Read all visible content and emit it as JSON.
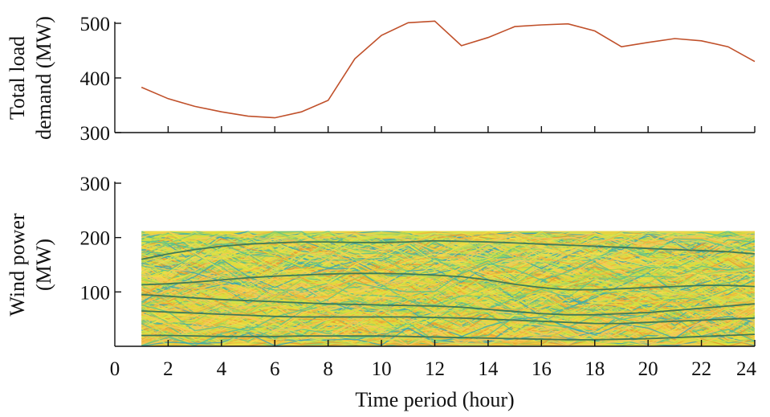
{
  "chart_data": [
    {
      "type": "line",
      "title": "",
      "ylabel_lines": [
        "Total load",
        "demand (MW)"
      ],
      "xlim": [
        0,
        24
      ],
      "ylim": [
        300,
        500
      ],
      "yticks": [
        300,
        400,
        500
      ],
      "xticks": [
        2,
        4,
        6,
        8,
        10,
        12,
        14,
        16,
        18,
        20,
        22,
        24
      ],
      "x": [
        1,
        2,
        3,
        4,
        5,
        6,
        7,
        8,
        9,
        10,
        11,
        12,
        13,
        14,
        15,
        16,
        17,
        18,
        19,
        20,
        21,
        22,
        23,
        24
      ],
      "series": [
        {
          "values": [
            383,
            362,
            348,
            338,
            330,
            327,
            338,
            359,
            435,
            478,
            501,
            504,
            459,
            474,
            494,
            497,
            499,
            486,
            457,
            465,
            472,
            468,
            457,
            430
          ]
        }
      ],
      "line_color": "#c0502a",
      "grid": false
    },
    {
      "type": "line",
      "title": "",
      "ylabel_lines": [
        "Wind power",
        "(MW)"
      ],
      "xlabel": "Time period (hour)",
      "xlim": [
        0,
        24
      ],
      "ylim": [
        0,
        300
      ],
      "yticks": [
        100,
        200,
        300
      ],
      "xticks": [
        0,
        2,
        4,
        6,
        8,
        10,
        12,
        14,
        16,
        18,
        20,
        22,
        24
      ],
      "band": {
        "x_range": [
          1,
          24
        ],
        "y_range": [
          0,
          212
        ]
      },
      "scenario_colors": [
        "#e8d63a",
        "#d7e23c",
        "#f0b43c",
        "#f4c85a",
        "#9fd45a",
        "#5cc28c",
        "#3aa6b4",
        "#e89a2e",
        "#cbe05a",
        "#f2de4a"
      ],
      "x": [
        1,
        2,
        3,
        4,
        5,
        6,
        7,
        8,
        9,
        10,
        11,
        12,
        13,
        14,
        15,
        16,
        17,
        18,
        19,
        20,
        21,
        22,
        23,
        24
      ],
      "series": [
        {
          "values": [
            160,
            170,
            178,
            184,
            188,
            190,
            192,
            192,
            191,
            191,
            192,
            194,
            193,
            192,
            190,
            188,
            186,
            184,
            182,
            180,
            178,
            176,
            174,
            170
          ]
        },
        {
          "values": [
            113,
            115,
            118,
            122,
            126,
            129,
            131,
            133,
            134,
            134,
            133,
            131,
            128,
            122,
            114,
            108,
            104,
            104,
            106,
            108,
            110,
            112,
            112,
            110
          ]
        },
        {
          "values": [
            95,
            92,
            89,
            86,
            84,
            82,
            80,
            78,
            77,
            76,
            75,
            74,
            72,
            68,
            64,
            60,
            58,
            58,
            60,
            62,
            66,
            70,
            74,
            78
          ]
        },
        {
          "values": [
            65,
            63,
            61,
            59,
            57,
            55,
            54,
            54,
            54,
            54,
            54,
            53,
            52,
            50,
            48,
            46,
            44,
            42,
            42,
            44,
            46,
            48,
            50,
            52
          ]
        },
        {
          "values": [
            20,
            20,
            19,
            18,
            18,
            18,
            19,
            19,
            19,
            19,
            18,
            17,
            16,
            15,
            14,
            13,
            12,
            12,
            13,
            14,
            16,
            18,
            20,
            22
          ]
        }
      ],
      "mean_line_color": "#3e7a58",
      "grid": false
    }
  ]
}
